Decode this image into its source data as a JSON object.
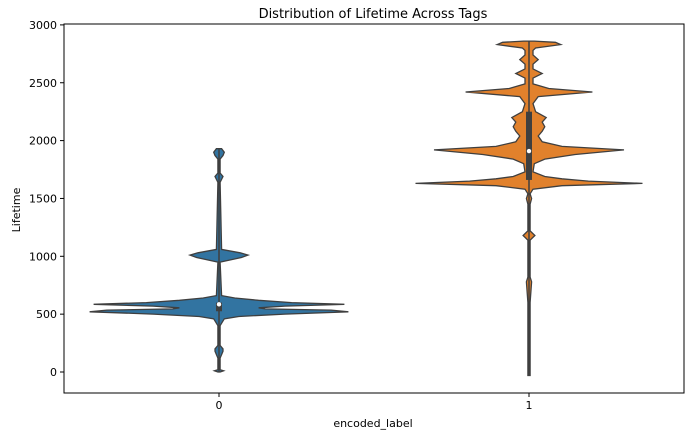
{
  "chart_data": {
    "type": "violin",
    "title": "Distribution of Lifetime Across Tags",
    "xlabel": "encoded_label",
    "ylabel": "Lifetime",
    "categories": [
      "0",
      "1"
    ],
    "ylim": [
      -180,
      3000
    ],
    "yticks": [
      0,
      500,
      1000,
      1500,
      2000,
      2500,
      3000
    ],
    "ytick_labels": [
      "0",
      "500",
      "1000",
      "1500",
      "2000",
      "2500",
      "3000"
    ],
    "grid": false,
    "series": [
      {
        "category": "0",
        "color": "#3274a1",
        "min": 0,
        "max": 1930,
        "q1": 525,
        "median": 585,
        "q3": 600,
        "profile": [
          [
            0,
            0.008
          ],
          [
            10,
            0.035
          ],
          [
            20,
            0.008
          ],
          [
            120,
            0.008
          ],
          [
            180,
            0.03
          ],
          [
            200,
            0.03
          ],
          [
            230,
            0.008
          ],
          [
            400,
            0.008
          ],
          [
            460,
            0.04
          ],
          [
            480,
            0.15
          ],
          [
            500,
            0.5
          ],
          [
            520,
            0.98
          ],
          [
            535,
            0.85
          ],
          [
            545,
            0.35
          ],
          [
            555,
            0.3
          ],
          [
            570,
            0.5
          ],
          [
            585,
            0.95
          ],
          [
            600,
            0.55
          ],
          [
            620,
            0.3
          ],
          [
            640,
            0.12
          ],
          [
            660,
            0.02
          ],
          [
            950,
            0.008
          ],
          [
            990,
            0.17
          ],
          [
            1010,
            0.22
          ],
          [
            1030,
            0.16
          ],
          [
            1060,
            0.02
          ],
          [
            1640,
            0.008
          ],
          [
            1690,
            0.03
          ],
          [
            1720,
            0.008
          ],
          [
            1840,
            0.008
          ],
          [
            1870,
            0.03
          ],
          [
            1900,
            0.04
          ],
          [
            1930,
            0.02
          ]
        ]
      },
      {
        "category": "1",
        "color": "#e1812c",
        "min": -30,
        "max": 2860,
        "q1": 1660,
        "median": 1910,
        "q3": 2250,
        "profile": [
          [
            -30,
            0.008
          ],
          [
            600,
            0.008
          ],
          [
            780,
            0.02
          ],
          [
            820,
            0.008
          ],
          [
            1140,
            0.008
          ],
          [
            1180,
            0.045
          ],
          [
            1220,
            0.008
          ],
          [
            1450,
            0.008
          ],
          [
            1500,
            0.02
          ],
          [
            1540,
            0.008
          ],
          [
            1580,
            0.03
          ],
          [
            1610,
            0.25
          ],
          [
            1630,
            0.86
          ],
          [
            1650,
            0.45
          ],
          [
            1670,
            0.25
          ],
          [
            1690,
            0.12
          ],
          [
            1730,
            0.03
          ],
          [
            1800,
            0.04
          ],
          [
            1840,
            0.12
          ],
          [
            1880,
            0.35
          ],
          [
            1920,
            0.72
          ],
          [
            1950,
            0.25
          ],
          [
            1990,
            0.1
          ],
          [
            2040,
            0.07
          ],
          [
            2080,
            0.1
          ],
          [
            2120,
            0.12
          ],
          [
            2160,
            0.1
          ],
          [
            2200,
            0.13
          ],
          [
            2250,
            0.05
          ],
          [
            2320,
            0.03
          ],
          [
            2380,
            0.07
          ],
          [
            2420,
            0.48
          ],
          [
            2450,
            0.15
          ],
          [
            2490,
            0.03
          ],
          [
            2540,
            0.03
          ],
          [
            2580,
            0.1
          ],
          [
            2620,
            0.03
          ],
          [
            2660,
            0.03
          ],
          [
            2700,
            0.07
          ],
          [
            2740,
            0.03
          ],
          [
            2780,
            0.03
          ],
          [
            2800,
            0.05
          ],
          [
            2830,
            0.24
          ],
          [
            2850,
            0.2
          ],
          [
            2860,
            0.04
          ]
        ]
      }
    ]
  }
}
